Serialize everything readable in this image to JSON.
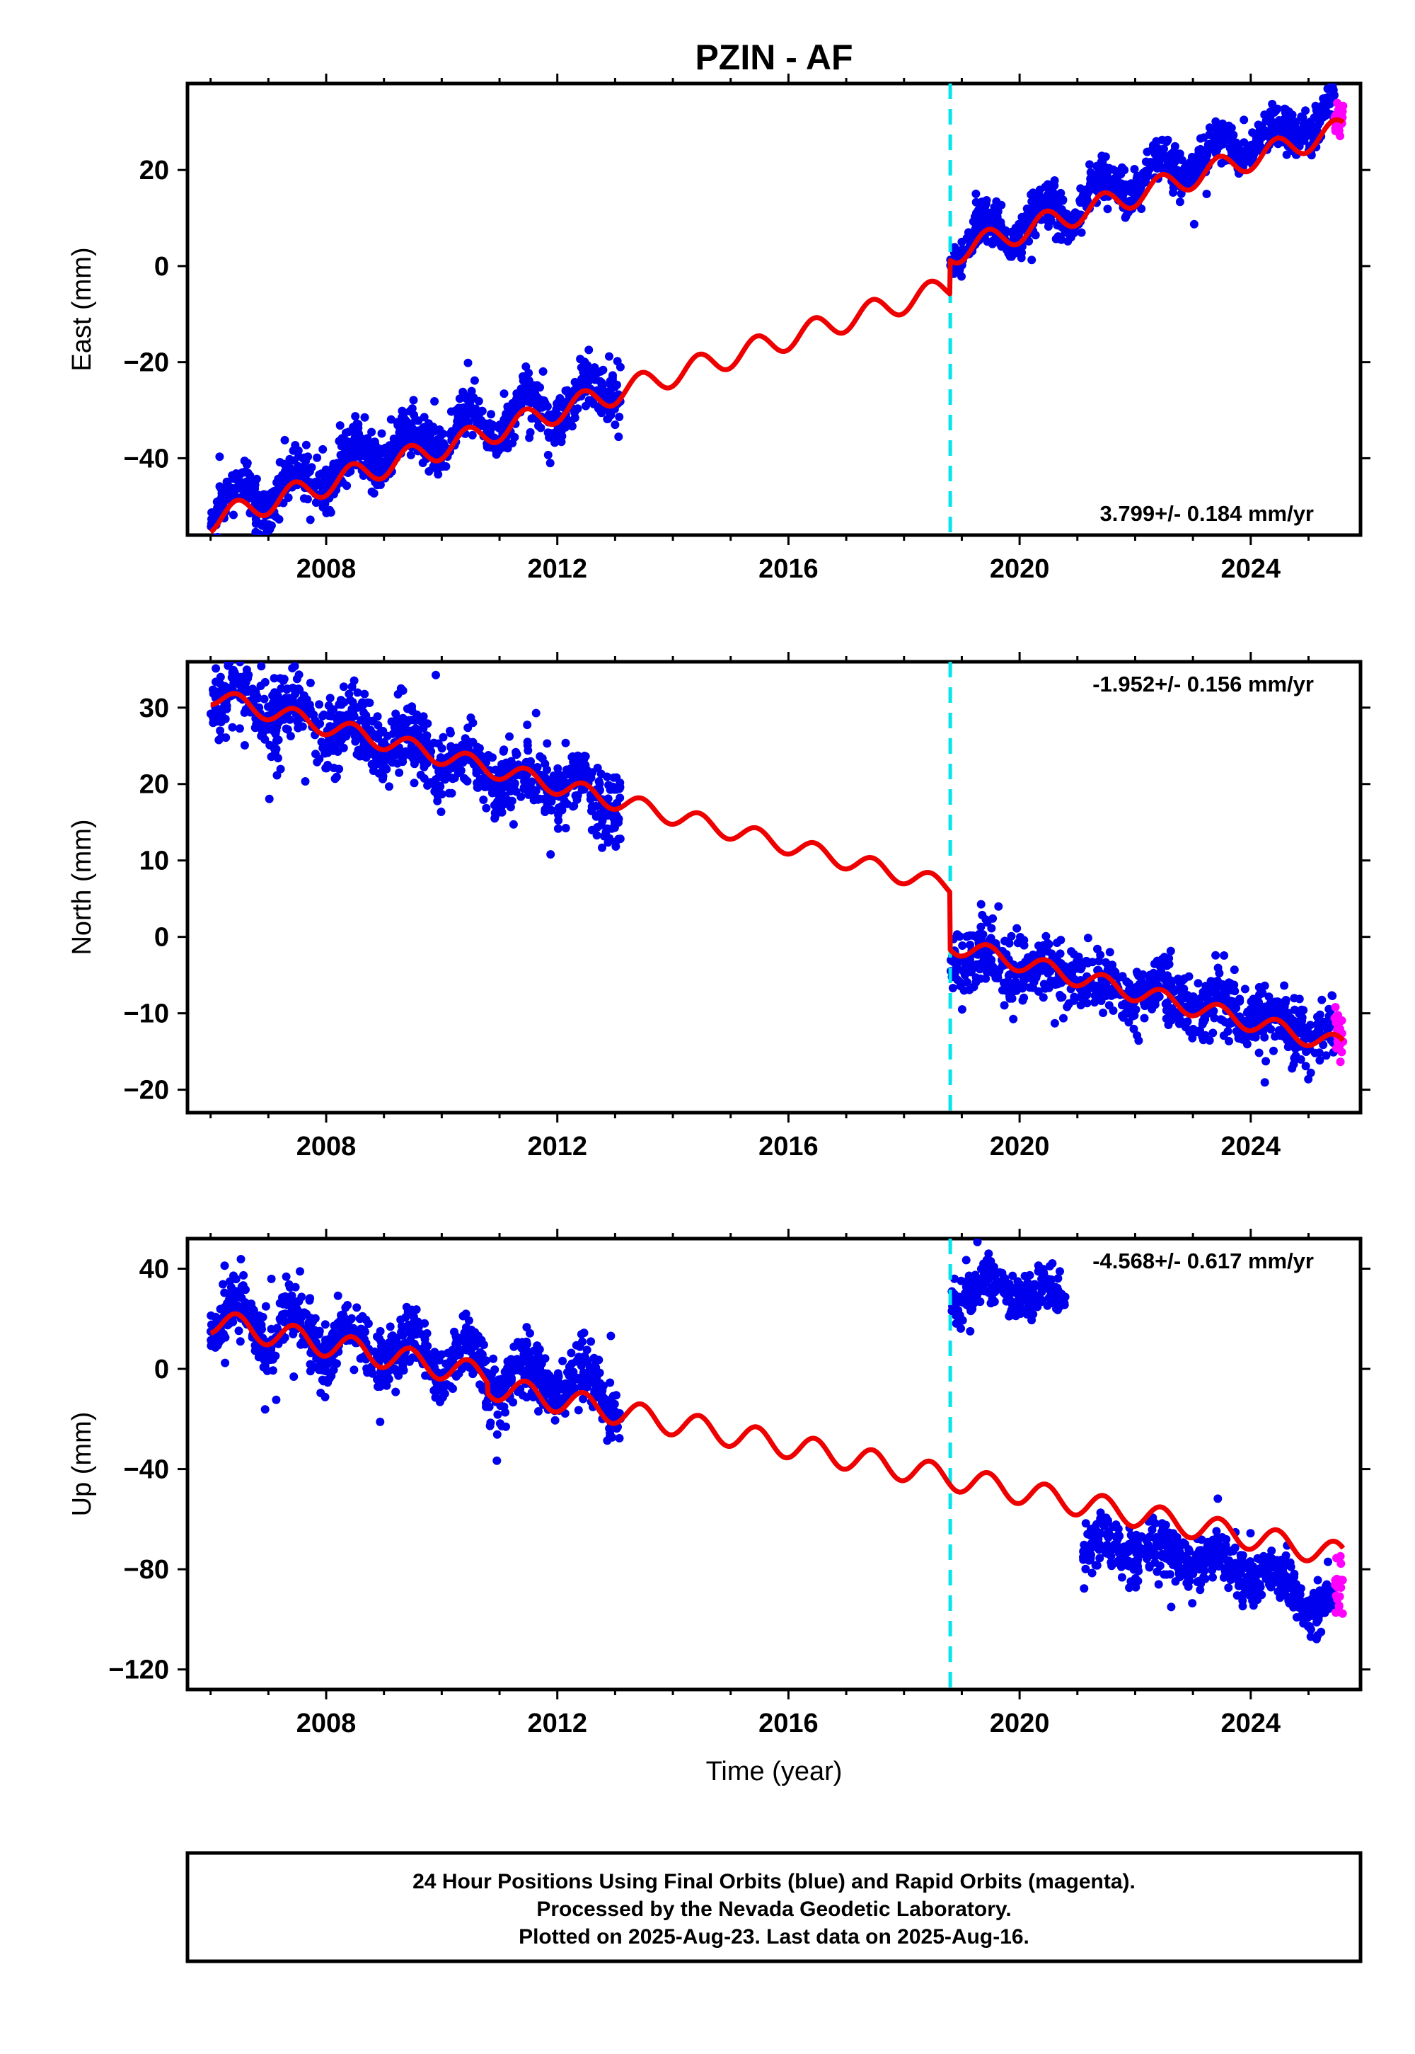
{
  "title": "PZIN - AF",
  "footer": {
    "lines": [
      "24 Hour Positions Using Final Orbits (blue) and Rapid Orbits (magenta).",
      "Processed by the Nevada Geodetic Laboratory.",
      "Plotted on 2025-Aug-23. Last data on 2025-Aug-16."
    ]
  },
  "colors": {
    "final_orbits": "#0000ee",
    "rapid_orbits": "#ff00ff",
    "model": "#ee0000",
    "offset_line": "#00e5ee"
  },
  "chart_data": [
    {
      "type": "scatter",
      "ylabel": "East (mm)",
      "xlabel": "",
      "xlim": [
        2005.6,
        2025.9
      ],
      "ylim": [
        -56,
        38
      ],
      "xticks": [
        2008,
        2012,
        2016,
        2020,
        2024
      ],
      "yticks": [
        -40,
        -20,
        0,
        20
      ],
      "rate_label": "3.799+/- 0.184 mm/yr",
      "rate_position": "bottom-right",
      "offset_epoch": 2018.8,
      "series": [
        {
          "kind": "points",
          "color": "final_orbits",
          "segments": [
            {
              "x": [
                2006.0,
                2006.5,
                2007.0,
                2007.5,
                2008.0,
                2008.5,
                2009.0,
                2009.5,
                2010.0,
                2010.5,
                2011.0,
                2011.5,
                2012.0,
                2012.5,
                2013.1
              ],
              "y": [
                -51,
                -47,
                -48,
                -44,
                -44,
                -40,
                -39,
                -36,
                -36,
                -32,
                -33,
                -29,
                -30,
                -26,
                -25
              ],
              "amp": 3,
              "noise": 2.5
            },
            {
              "x": [
                2018.8,
                2019.3,
                2019.8,
                2020.3,
                2020.8,
                2021.3,
                2021.8,
                2022.3,
                2022.8,
                2023.3,
                2023.8,
                2024.3,
                2024.8,
                2025.45
              ],
              "y": [
                2,
                8,
                6,
                11,
                11,
                16,
                16,
                20,
                20,
                24,
                24,
                28,
                28,
                33
              ],
              "amp": 2.5,
              "noise": 2.2
            }
          ]
        },
        {
          "kind": "points",
          "color": "rapid_orbits",
          "segments": [
            {
              "x": [
                2025.45,
                2025.6
              ],
              "y": [
                31,
                30
              ],
              "amp": 0,
              "noise": 2
            }
          ]
        },
        {
          "kind": "model",
          "color": "model",
          "trend": 3.799,
          "start": [
            2006.0,
            -53
          ],
          "jumps": [
            {
              "epoch": 2018.8,
              "delta": 7
            }
          ],
          "amp": 2.5,
          "end": 2025.6
        }
      ]
    },
    {
      "type": "scatter",
      "ylabel": "North (mm)",
      "xlabel": "",
      "xlim": [
        2005.6,
        2025.9
      ],
      "ylim": [
        -23,
        36
      ],
      "xticks": [
        2008,
        2012,
        2016,
        2020,
        2024
      ],
      "yticks": [
        -20,
        -10,
        0,
        10,
        20,
        30
      ],
      "rate_label": "-1.952+/- 0.156 mm/yr",
      "rate_position": "top-right",
      "offset_epoch": 2018.8,
      "series": [
        {
          "kind": "points",
          "color": "final_orbits",
          "segments": [
            {
              "x": [
                2006.0,
                2006.5,
                2007.0,
                2007.5,
                2008.0,
                2008.5,
                2009.0,
                2009.5,
                2010.0,
                2010.5,
                2011.0,
                2011.5,
                2012.0,
                2012.5,
                2013.1
              ],
              "y": [
                31,
                32,
                29,
                30,
                27,
                27,
                25,
                25,
                23,
                23,
                21,
                21,
                20,
                19,
                17
              ],
              "amp": 1.2,
              "noise": 2.2
            },
            {
              "x": [
                2018.8,
                2019.3,
                2019.8,
                2020.3,
                2020.8,
                2021.3,
                2021.8,
                2022.3,
                2022.8,
                2023.3,
                2023.8,
                2024.3,
                2024.8,
                2025.45
              ],
              "y": [
                -2,
                -3,
                -4,
                -4,
                -5,
                -6,
                -7,
                -7,
                -8,
                -9,
                -10,
                -11,
                -12,
                -13
              ],
              "amp": 1.2,
              "noise": 2.0
            }
          ]
        },
        {
          "kind": "points",
          "color": "rapid_orbits",
          "segments": [
            {
              "x": [
                2025.45,
                2025.6
              ],
              "y": [
                -12,
                -13
              ],
              "amp": 0,
              "noise": 1.5
            }
          ]
        },
        {
          "kind": "model",
          "color": "model",
          "trend": -1.952,
          "start": [
            2006.0,
            31.5
          ],
          "jumps": [
            {
              "epoch": 2018.8,
              "delta": -7.5
            }
          ],
          "amp": 1.2,
          "end": 2025.6
        }
      ]
    },
    {
      "type": "scatter",
      "ylabel": "Up (mm)",
      "xlabel": "Time (year)",
      "xlim": [
        2005.6,
        2025.9
      ],
      "ylim": [
        -128,
        52
      ],
      "xticks": [
        2008,
        2012,
        2016,
        2020,
        2024
      ],
      "yticks": [
        -120,
        -80,
        -40,
        0,
        40
      ],
      "rate_label": "-4.568+/- 0.617 mm/yr",
      "rate_position": "top-right",
      "offset_epoch": 2018.8,
      "series": [
        {
          "kind": "points",
          "color": "final_orbits",
          "segments": [
            {
              "x": [
                2006.0,
                2006.5,
                2007.0,
                2007.5,
                2008.0,
                2008.5,
                2009.0,
                2009.5,
                2010.0,
                2010.5,
                2011.0,
                2011.5,
                2012.0,
                2012.5,
                2013.1
              ],
              "y": [
                18,
                22,
                15,
                18,
                10,
                13,
                6,
                9,
                2,
                4,
                -5,
                -2,
                -7,
                -5,
                -12
              ],
              "amp": 6,
              "noise": 6
            },
            {
              "x": [
                2018.8,
                2019.2,
                2019.6,
                2020.0,
                2020.4,
                2020.8
              ],
              "y": [
                30,
                30,
                34,
                30,
                30,
                28
              ],
              "amp": 4,
              "noise": 5
            },
            {
              "x": [
                2021.1,
                2021.5,
                2021.9,
                2022.3,
                2022.7,
                2023.1,
                2023.5,
                2023.9,
                2024.3,
                2024.7,
                2025.1,
                2025.45
              ],
              "y": [
                -72,
                -70,
                -73,
                -72,
                -74,
                -76,
                -78,
                -80,
                -84,
                -86,
                -95,
                -92
              ],
              "amp": 4,
              "noise": 5
            }
          ]
        },
        {
          "kind": "points",
          "color": "rapid_orbits",
          "segments": [
            {
              "x": [
                2025.45,
                2025.6
              ],
              "y": [
                -85,
                -86
              ],
              "amp": 0,
              "noise": 6
            }
          ]
        },
        {
          "kind": "model",
          "color": "model",
          "trend": -4.568,
          "start": [
            2006.0,
            19
          ],
          "jumps": [
            {
              "epoch": 2010.8,
              "delta": -4
            }
          ],
          "amp": 5,
          "end": 2025.6
        }
      ]
    }
  ]
}
